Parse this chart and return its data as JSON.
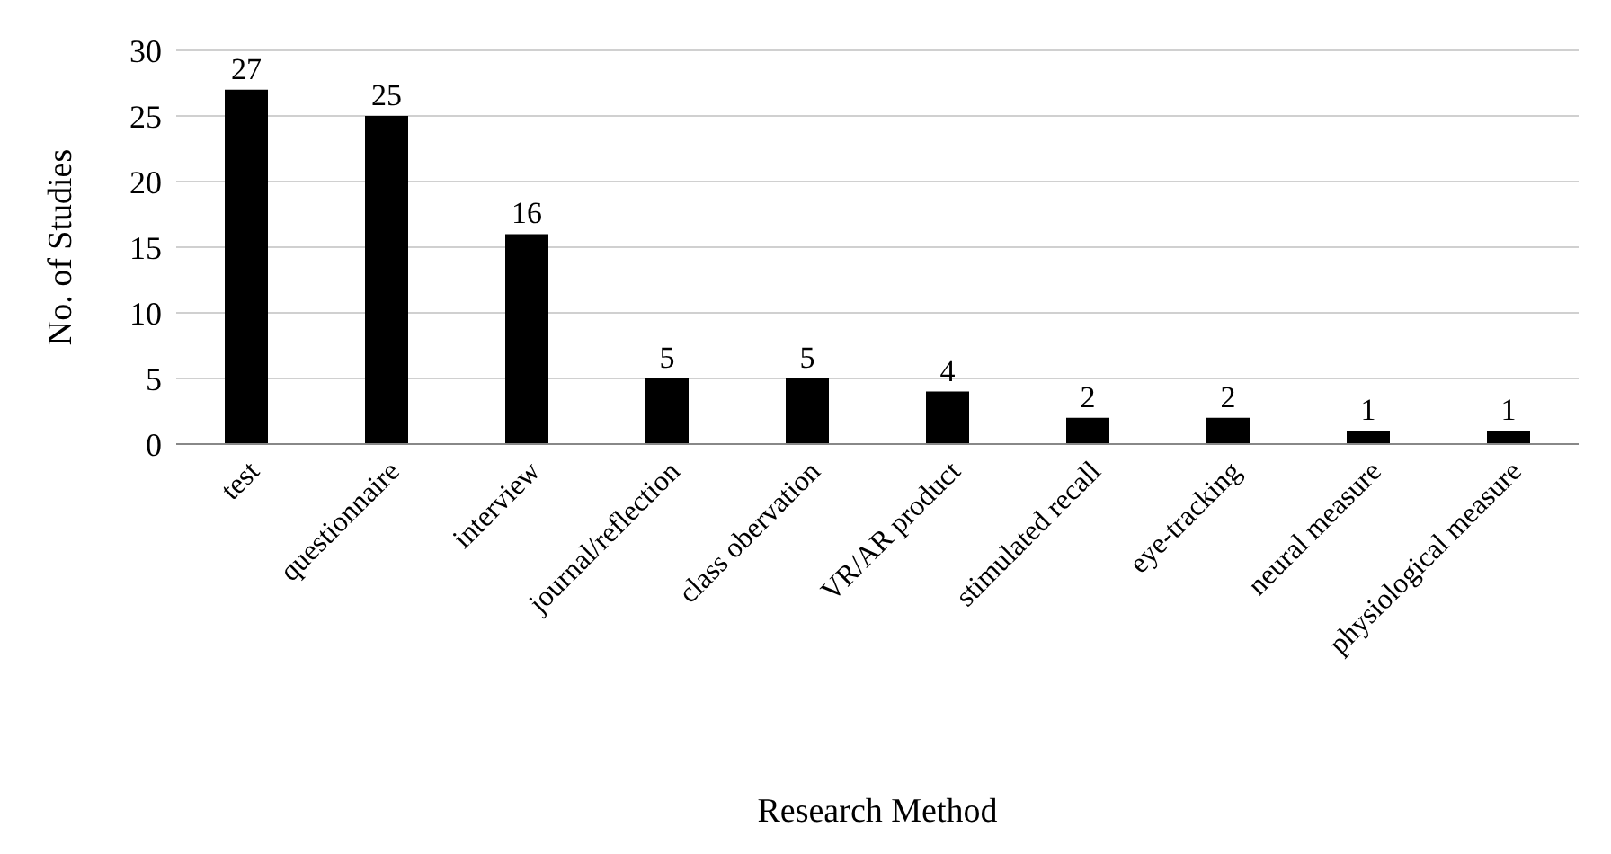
{
  "chart_data": {
    "type": "bar",
    "xlabel": "Research Method",
    "ylabel": "No. of Studies",
    "categories": [
      "test",
      "questionnaire",
      "interview",
      "journal/reflection",
      "class obervation",
      "VR/AR product",
      "stimulated recall",
      "eye-tracking",
      "neural measure",
      "physiological measure"
    ],
    "values": [
      27,
      25,
      16,
      5,
      5,
      4,
      2,
      2,
      1,
      1
    ],
    "color": "#000000",
    "ylim": [
      0,
      30
    ],
    "yticks": [
      0,
      5,
      10,
      15,
      20,
      25,
      30
    ],
    "grid": "y",
    "data_labels": true
  }
}
